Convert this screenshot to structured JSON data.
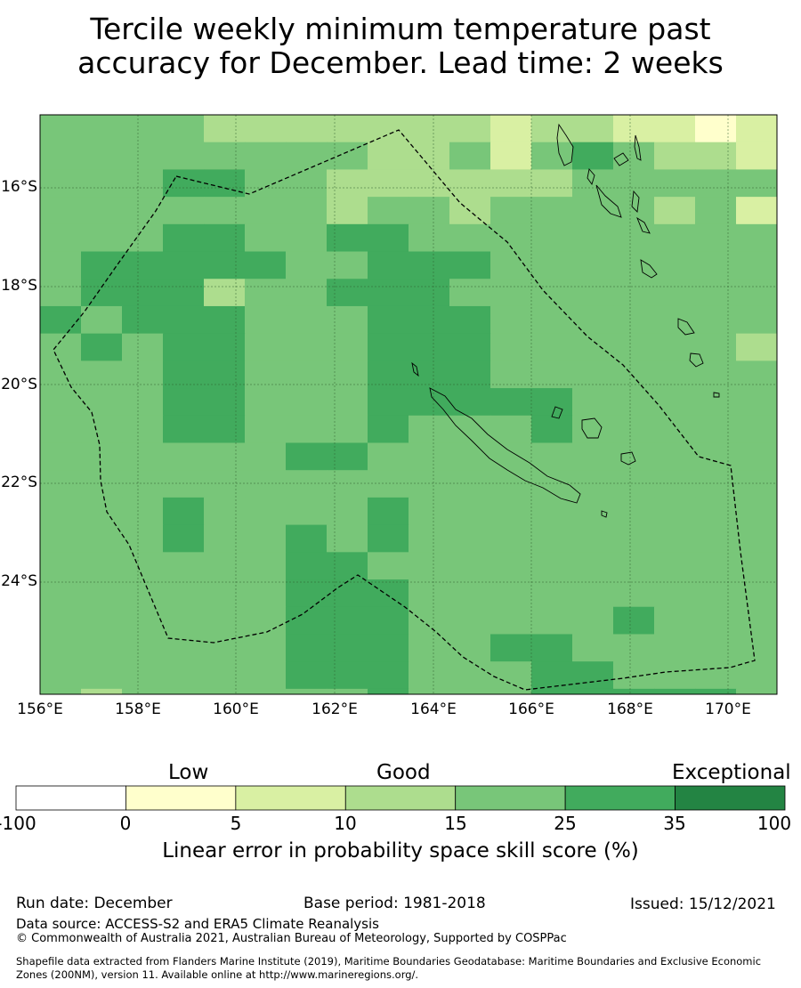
{
  "title_line1": "Tercile weekly minimum temperature past",
  "title_line2": "accuracy for December. Lead time: 2 weeks",
  "map": {
    "lat_labels": [
      "16°S",
      "18°S",
      "20°S",
      "22°S",
      "24°S"
    ],
    "lon_labels": [
      "156°E",
      "158°E",
      "160°E",
      "162°E",
      "164°E",
      "166°E",
      "168°E",
      "170°E"
    ]
  },
  "colorbar": {
    "categories": [
      "Low",
      "Good",
      "Exceptional"
    ],
    "ticks": [
      "-100",
      "0",
      "5",
      "10",
      "15",
      "25",
      "35",
      "100"
    ],
    "colors": [
      "#ffffff",
      "#ffffcc",
      "#d9f0a3",
      "#addd8e",
      "#78c679",
      "#41ab5d",
      "#238443"
    ],
    "label": "Linear error in probability space skill score (%)"
  },
  "footer": {
    "run_date": "Run date: December",
    "base_period": "Base period: 1981-2018",
    "issued": "Issued: 15/12/2021",
    "data_source": "Data source: ACCESS-S2 and ERA5 Climate Reanalysis",
    "copyright": "© Commonwealth of Australia 2021, Australian Bureau of Meteorology, Supported by COSPPac",
    "shapefile_line1": "Shapefile data extracted from Flanders Marine Institute (2019), Maritime Boundaries Geodatabase: Maritime Boundaries and Exclusive Economic",
    "shapefile_line2": "Zones (200NM), version 11. Available online at http://www.marineregions.org/."
  }
}
